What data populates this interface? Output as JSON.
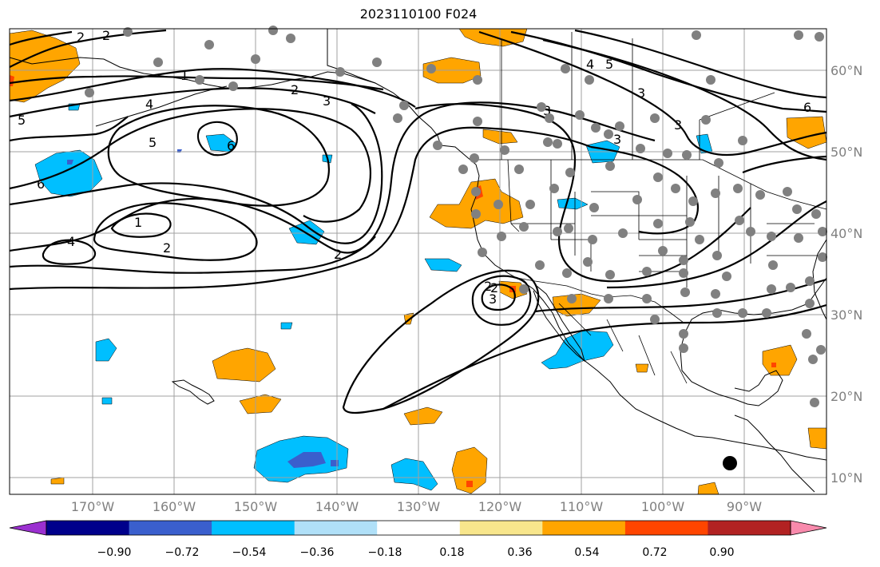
{
  "title": "2023110100 F024",
  "lat_labels": [
    "60°N",
    "50°N",
    "40°N",
    "30°N",
    "20°N",
    "10°N"
  ],
  "lon_labels": [
    "170°W",
    "160°W",
    "150°W",
    "140°W",
    "130°W",
    "120°W",
    "110°W",
    "100°W",
    "90°W"
  ],
  "colorbar": {
    "tick_labels": [
      "−0.90",
      "−0.72",
      "−0.54",
      "−0.36",
      "−0.18",
      "0.18",
      "0.36",
      "0.54",
      "0.72",
      "0.90"
    ],
    "colors": [
      "#9b30d0",
      "#00008b",
      "#3a5fcd",
      "#00bfff",
      "#b0e0f8",
      "#ffffff",
      "#f8e68c",
      "#ffa500",
      "#ff4500",
      "#b22222",
      "#f88aac"
    ]
  },
  "contour_labels": [
    "2",
    "2",
    "1",
    "2",
    "3",
    "4",
    "5",
    "5",
    "6",
    "6",
    "1",
    "2",
    "4",
    "2",
    "2",
    "2",
    "3",
    "3",
    "3",
    "3",
    "4",
    "5",
    "3",
    "6"
  ],
  "colors": {
    "positive_fill": "#ffa500",
    "strong_positive": "#ff4500",
    "negative_fill": "#00bfff",
    "strong_negative": "#3a5fcd",
    "station_marker": "#808080"
  }
}
